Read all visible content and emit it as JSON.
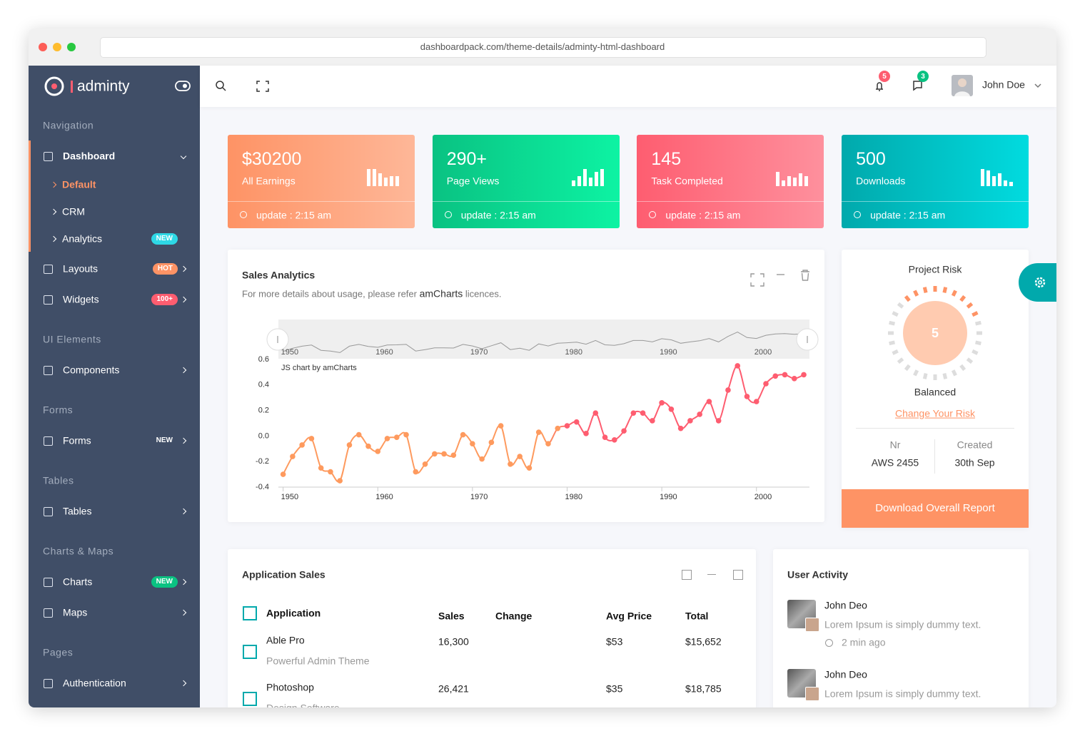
{
  "browser": {
    "url": "dashboardpack.com/theme-details/adminty-html-dashboard"
  },
  "sidebar": {
    "brand": "adminty",
    "sections": [
      {
        "title": "Navigation",
        "items": [
          {
            "label": "Dashboard",
            "children": [
              {
                "label": "Default",
                "active": true
              },
              {
                "label": "CRM"
              },
              {
                "label": "Analytics",
                "badge": "NEW",
                "badge_color": "#2ed8e6"
              }
            ]
          },
          {
            "label": "Layouts",
            "badge": "HOT",
            "badge_color": "#fe9365"
          },
          {
            "label": "Widgets",
            "badge": "100+",
            "badge_color": "#fe5d70"
          }
        ]
      },
      {
        "title": "UI Elements",
        "items": [
          {
            "label": "Components"
          }
        ]
      },
      {
        "title": "Forms",
        "items": [
          {
            "label": "Forms",
            "badge": "NEW"
          }
        ]
      },
      {
        "title": "Tables",
        "items": [
          {
            "label": "Tables"
          }
        ]
      },
      {
        "title": "Charts & Maps",
        "items": [
          {
            "label": "Charts",
            "badge": "NEW",
            "badge_color": "#0ac282"
          },
          {
            "label": "Maps"
          }
        ]
      },
      {
        "title": "Pages",
        "items": [
          {
            "label": "Authentication"
          }
        ]
      }
    ]
  },
  "header": {
    "notifications": "5",
    "messages": "3",
    "user": "John Doe"
  },
  "stats": [
    {
      "value": "$30200",
      "label": "All Earnings",
      "update": "update : 2:15 am",
      "colors": [
        "#fe9365",
        "#feb798"
      ]
    },
    {
      "value": "290+",
      "label": "Page Views",
      "update": "update : 2:15 am",
      "colors": [
        "#0ac282",
        "#0df3a3"
      ]
    },
    {
      "value": "145",
      "label": "Task Completed",
      "update": "update : 2:15 am",
      "colors": [
        "#fe5d70",
        "#fe909d"
      ]
    },
    {
      "value": "500",
      "label": "Downloads",
      "update": "update : 2:15 am",
      "colors": [
        "#01a9ac",
        "#01dbdf"
      ]
    }
  ],
  "chart_data": {
    "type": "line",
    "title": "Sales Analytics",
    "subtitle": [
      "For more details about usage, please refer",
      "amCharts",
      "licences."
    ],
    "credit": "JS chart by amCharts",
    "x": [
      1950,
      1951,
      1952,
      1953,
      1954,
      1955,
      1956,
      1957,
      1958,
      1959,
      1960,
      1961,
      1962,
      1963,
      1964,
      1965,
      1966,
      1967,
      1968,
      1969,
      1970,
      1971,
      1972,
      1973,
      1974,
      1975,
      1976,
      1977,
      1978,
      1979,
      1980,
      1981,
      1982,
      1983,
      1984,
      1985,
      1986,
      1987,
      1988,
      1989,
      1990,
      1991,
      1992,
      1993,
      1994,
      1995,
      1996,
      1997,
      1998,
      1999,
      2000,
      2001,
      2002,
      2003,
      2004,
      2005
    ],
    "values": [
      -0.3,
      -0.16,
      -0.07,
      -0.02,
      -0.25,
      -0.28,
      -0.35,
      -0.07,
      0.01,
      -0.08,
      -0.12,
      -0.02,
      -0.01,
      0.01,
      -0.28,
      -0.22,
      -0.14,
      -0.14,
      -0.15,
      0.01,
      -0.06,
      -0.18,
      -0.05,
      0.08,
      -0.22,
      -0.16,
      -0.25,
      0.03,
      -0.06,
      0.06,
      0.08,
      0.11,
      0.02,
      0.18,
      -0.01,
      -0.03,
      0.04,
      0.18,
      0.18,
      0.12,
      0.26,
      0.21,
      0.06,
      0.12,
      0.17,
      0.27,
      0.12,
      0.36,
      0.55,
      0.31,
      0.27,
      0.41,
      0.47,
      0.48,
      0.45,
      0.48
    ],
    "colors": [
      "#fe9a5e",
      "#fe5d70"
    ],
    "xlim": [
      1949.5,
      2005.6
    ],
    "xticks": [
      1950,
      1960,
      1970,
      1980,
      1990,
      2000
    ],
    "ylim": [
      -0.4,
      0.6
    ],
    "yticks": [
      -0.4,
      -0.2,
      {
        "value": 0,
        "label": "0.0"
      },
      0.2,
      0.4,
      0.6
    ]
  },
  "risk": {
    "title": "Project Risk",
    "score": "5",
    "status": "Balanced",
    "link": "Change Your Risk",
    "fields": [
      {
        "label": "Nr",
        "value": "AWS 2455"
      },
      {
        "label": "Created",
        "value": "30th Sep"
      }
    ],
    "button": "Download Overall Report"
  },
  "app_sales": {
    "title": "Application Sales",
    "columns": [
      "Application",
      "Sales",
      "Change",
      "Avg Price",
      "Total"
    ],
    "rows": [
      {
        "name": "Able Pro",
        "desc": "Powerful Admin Theme",
        "sales": "16,300",
        "avg": "$53",
        "total": "$15,652"
      },
      {
        "name": "Photoshop",
        "desc": "Design Software",
        "sales": "26,421",
        "avg": "$35",
        "total": "$18,785"
      }
    ]
  },
  "activity": {
    "title": "User Activity",
    "items": [
      {
        "name": "John Deo",
        "text": "Lorem Ipsum is simply dummy text.",
        "time": "2 min ago"
      },
      {
        "name": "John Deo",
        "text": "Lorem Ipsum is simply dummy text."
      }
    ]
  }
}
